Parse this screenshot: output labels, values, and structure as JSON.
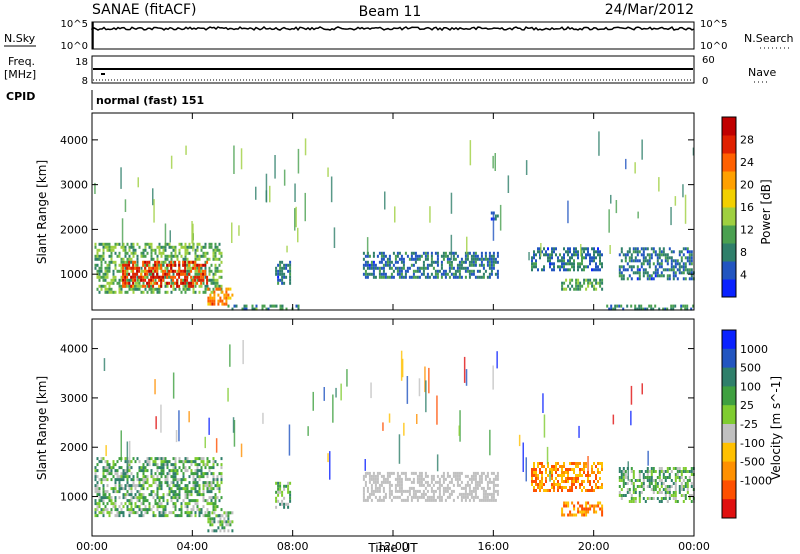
{
  "header": {
    "left_title": "SANAE (fitACF)",
    "center_title": "Beam 11",
    "right_title": "24/Mar/2012"
  },
  "nsky_panel": {
    "left_label": "N.Sky",
    "left_ticks": [
      "10^5",
      "10^0"
    ],
    "right_label": "N.Search",
    "right_ticks": [
      "10^5",
      "10^0"
    ],
    "line_color": "#000000"
  },
  "freq_panel": {
    "left_label_line1": "Freq.",
    "left_label_line2": "[MHz]",
    "left_ticks": [
      "18",
      "8"
    ],
    "right_label": "Nave",
    "right_ticks": [
      "60",
      "0"
    ]
  },
  "cpid": {
    "label": "CPID",
    "mode_text": "normal (fast) 151"
  },
  "chart_data": [
    {
      "type": "heatmap",
      "name_parameter": "Power",
      "ylabel": "Slant Range [km]",
      "xlabel": "",
      "x_ticks": [
        "00:00",
        "04:00",
        "08:00",
        "12:00",
        "16:00",
        "20:00",
        "00:00"
      ],
      "x_tick_hours": [
        0,
        4,
        8,
        12,
        16,
        20,
        24
      ],
      "ylim": [
        200,
        4600
      ],
      "y_ticks": [
        1000,
        2000,
        3000,
        4000
      ],
      "colorbar": {
        "label": "Power [dB]",
        "range": [
          0,
          32
        ],
        "ticks": [
          4,
          8,
          12,
          16,
          20,
          24,
          28
        ],
        "colors": [
          "#0a22ff",
          "#2255c0",
          "#2f7f6a",
          "#4aa050",
          "#9fd040",
          "#f2d000",
          "#ffa000",
          "#ff6000",
          "#e02000",
          "#c00000"
        ]
      },
      "regions": [
        {
          "t0": 0.1,
          "t1": 5.2,
          "r0": 600,
          "r1": 1700,
          "value": 12
        },
        {
          "t0": 1.2,
          "t1": 4.6,
          "r0": 700,
          "r1": 1300,
          "value": 26
        },
        {
          "t0": 4.6,
          "t1": 5.6,
          "r0": 300,
          "r1": 700,
          "value": 22
        },
        {
          "t0": 5.4,
          "t1": 8.2,
          "r0": 200,
          "r1": 320,
          "value": 9
        },
        {
          "t0": 7.3,
          "t1": 7.9,
          "r0": 800,
          "r1": 1300,
          "value": 7
        },
        {
          "t0": 10.8,
          "t1": 16.2,
          "r0": 900,
          "r1": 1500,
          "value": 7
        },
        {
          "t0": 15.9,
          "t1": 16.2,
          "r0": 2200,
          "r1": 2400,
          "value": 6
        },
        {
          "t0": 17.5,
          "t1": 20.3,
          "r0": 1100,
          "r1": 1600,
          "value": 7
        },
        {
          "t0": 18.7,
          "t1": 20.3,
          "r0": 650,
          "r1": 900,
          "value": 11
        },
        {
          "t0": 21.0,
          "t1": 24.0,
          "r0": 900,
          "r1": 1600,
          "value": 7
        },
        {
          "t0": 20.5,
          "t1": 24.0,
          "r0": 220,
          "r1": 320,
          "value": 9
        }
      ]
    },
    {
      "type": "heatmap",
      "name_parameter": "Velocity",
      "ylabel": "Slant Range [km]",
      "xlabel": "Time UT",
      "x_ticks": [
        "00:00",
        "04:00",
        "08:00",
        "12:00",
        "16:00",
        "20:00",
        "00:00"
      ],
      "x_tick_hours": [
        0,
        4,
        8,
        12,
        16,
        20,
        24
      ],
      "ylim": [
        200,
        4600
      ],
      "y_ticks": [
        1000,
        2000,
        3000,
        4000
      ],
      "colorbar": {
        "label": "Velocity [m s^-1]",
        "tick_labels": [
          "1000",
          "500",
          "100",
          "25",
          "-25",
          "-100",
          "-500",
          "-1000"
        ],
        "colors": [
          "#0a22ff",
          "#2255c0",
          "#2f7f6a",
          "#3fa040",
          "#7fcc30",
          "#c0c0c0",
          "#ffc000",
          "#ff9000",
          "#ff5000",
          "#e01010"
        ]
      },
      "regions": [
        {
          "t0": 0.1,
          "t1": 5.2,
          "r0": 600,
          "r1": 1800,
          "value_class": "positive-low"
        },
        {
          "t0": 4.6,
          "t1": 5.6,
          "r0": 300,
          "r1": 700,
          "value_class": "positive-low"
        },
        {
          "t0": 7.3,
          "t1": 7.9,
          "r0": 800,
          "r1": 1300,
          "value_class": "positive-low"
        },
        {
          "t0": 10.8,
          "t1": 16.2,
          "r0": 900,
          "r1": 1500,
          "value_class": "near-zero"
        },
        {
          "t0": 17.5,
          "t1": 20.3,
          "r0": 1100,
          "r1": 1700,
          "value_class": "negative"
        },
        {
          "t0": 18.7,
          "t1": 20.3,
          "r0": 650,
          "r1": 900,
          "value_class": "negative"
        },
        {
          "t0": 21.0,
          "t1": 24.0,
          "r0": 900,
          "r1": 1600,
          "value_class": "positive-low"
        }
      ]
    }
  ]
}
